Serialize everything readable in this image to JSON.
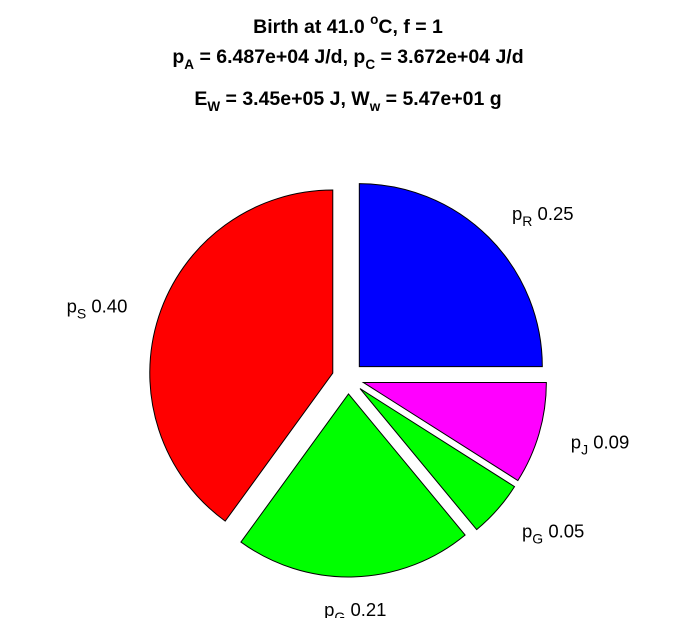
{
  "title": {
    "line1": {
      "prefix": "Birth at 41.0 ",
      "sup": "o",
      "suffix": "C, f = 1"
    },
    "line2": {
      "pa_sym": "p",
      "pa_sub": "A",
      "pa_val": " = 6.487e+04 J/d, ",
      "pc_sym": "p",
      "pc_sub": "C",
      "pc_val": " = 3.672e+04 J/d"
    },
    "line3": {
      "ew_sym": "E",
      "ew_sub": "W",
      "ew_val": " = 3.45e+05 J, ",
      "ww_sym": "W",
      "ww_sub": "w",
      "ww_val": " = 5.47e+01 g"
    }
  },
  "chart_data": {
    "type": "pie",
    "exploded": true,
    "start_angle_deg": 90,
    "direction": "clockwise",
    "slices": [
      {
        "symbol": "p",
        "subscript": "R",
        "value_label": "0.25",
        "value": 0.25,
        "color": "#0000FF"
      },
      {
        "symbol": "p",
        "subscript": "J",
        "value_label": "0.09",
        "value": 0.09,
        "color": "#FF00FF"
      },
      {
        "symbol": "p",
        "subscript": "G",
        "value_label": "0.05",
        "value": 0.05,
        "color": "#00FF00"
      },
      {
        "symbol": "p",
        "subscript": "G",
        "value_label": "0.21",
        "value": 0.21,
        "color": "#00FF00"
      },
      {
        "symbol": "p",
        "subscript": "S",
        "value_label": "0.40",
        "value": 0.4,
        "color": "#FF0000"
      }
    ]
  }
}
